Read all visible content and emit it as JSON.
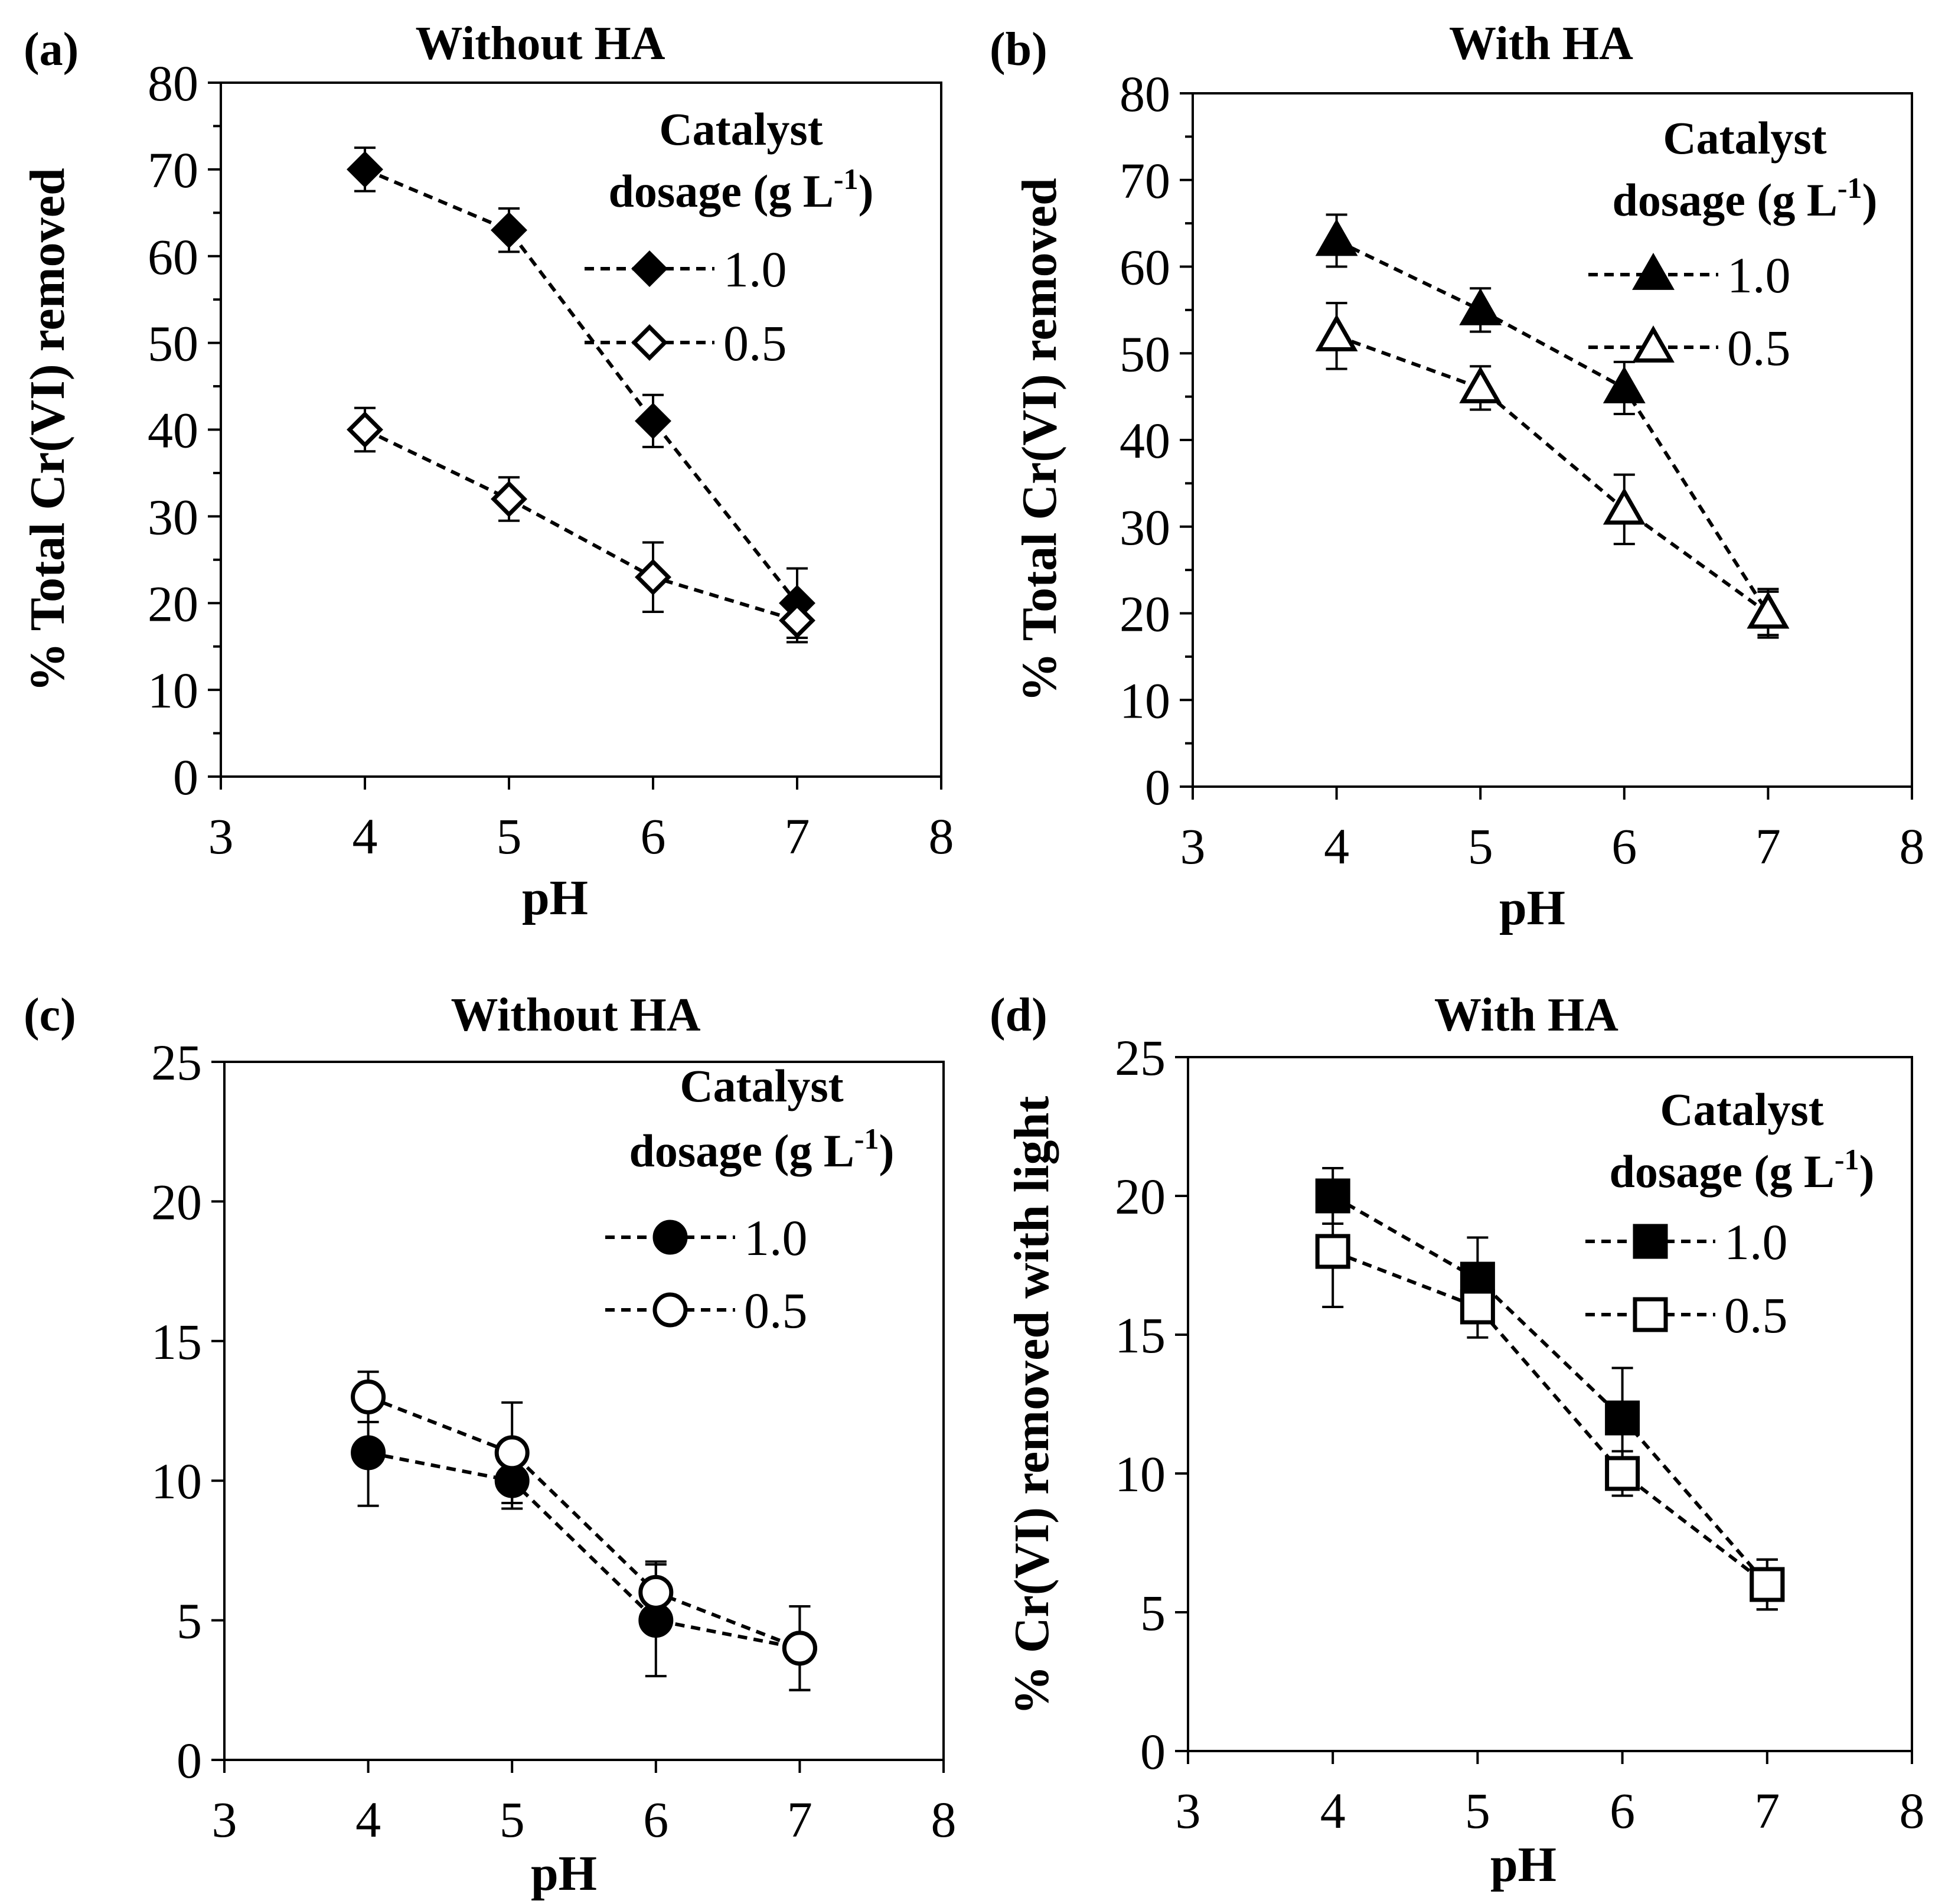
{
  "colors": {
    "ink": "#000000",
    "background": "#ffffff",
    "open_fill": "#ffffff"
  },
  "legend": {
    "title_line1": "Catalyst",
    "title_line2_prefix": "dosage (g L",
    "title_line2_sup": "-1",
    "title_line2_suffix": ")"
  },
  "chart_data": [
    {
      "id": "a",
      "type": "line",
      "panel_label": "(a)",
      "title": "Without HA",
      "xlabel": "pH",
      "ylabel": "% Total Cr(VI) removed",
      "xlim": [
        3,
        8
      ],
      "ylim": [
        0,
        80
      ],
      "xticks": [
        "3",
        "4",
        "5",
        "6",
        "7",
        "8"
      ],
      "yticks": [
        "0",
        "10",
        "20",
        "30",
        "40",
        "50",
        "60",
        "70",
        "80"
      ],
      "minor_y": [
        5,
        15,
        25,
        35,
        45,
        55,
        65,
        75
      ],
      "marker": "diamond",
      "x": [
        4,
        5,
        6,
        7
      ],
      "series": [
        {
          "name": "1.0",
          "filled": true,
          "values": [
            70,
            63,
            41,
            20
          ],
          "errors": [
            2.5,
            2.5,
            3,
            4
          ]
        },
        {
          "name": "0.5",
          "filled": false,
          "values": [
            40,
            32,
            23,
            18
          ],
          "errors": [
            2.5,
            2.5,
            4,
            2.5
          ]
        }
      ]
    },
    {
      "id": "b",
      "type": "line",
      "panel_label": "(b)",
      "title": "With HA",
      "xlabel": "pH",
      "ylabel": "% Total Cr(VI) removed",
      "xlim": [
        3,
        8
      ],
      "ylim": [
        0,
        80
      ],
      "xticks": [
        "3",
        "4",
        "5",
        "6",
        "7",
        "8"
      ],
      "yticks": [
        "0",
        "10",
        "20",
        "30",
        "40",
        "50",
        "60",
        "70",
        "80"
      ],
      "minor_y": [
        5,
        15,
        25,
        35,
        45,
        55,
        65,
        75
      ],
      "marker": "triangle",
      "x": [
        4,
        5,
        6,
        7
      ],
      "series": [
        {
          "name": "1.0",
          "filled": true,
          "values": [
            63,
            55,
            46,
            20
          ],
          "errors": [
            3,
            2.5,
            3,
            2.5
          ]
        },
        {
          "name": "0.5",
          "filled": false,
          "values": [
            52,
            46,
            32,
            20
          ],
          "errors": [
            3.8,
            2.5,
            4,
            2.8
          ]
        }
      ]
    },
    {
      "id": "c",
      "type": "line",
      "panel_label": "(c)",
      "title": "Without HA",
      "xlabel": "pH",
      "ylabel": "",
      "xlim": [
        3,
        8
      ],
      "ylim": [
        0,
        25
      ],
      "xticks": [
        "3",
        "4",
        "5",
        "6",
        "7",
        "8"
      ],
      "yticks": [
        "0",
        "5",
        "10",
        "15",
        "20",
        "25"
      ],
      "minor_y": [],
      "marker": "circle",
      "x": [
        4,
        5,
        6,
        7
      ],
      "series": [
        {
          "name": "1.0",
          "filled": true,
          "values": [
            11,
            10,
            5,
            4
          ],
          "errors": [
            1.9,
            1.0,
            2.0,
            1.5
          ]
        },
        {
          "name": "0.5",
          "filled": false,
          "values": [
            13,
            11,
            6,
            4
          ],
          "errors": [
            0.9,
            1.8,
            1.1,
            1.5
          ]
        }
      ]
    },
    {
      "id": "d",
      "type": "line",
      "panel_label": "(d)",
      "title": "With HA",
      "xlabel": "pH",
      "ylabel": "% Cr(VI) removed with light",
      "xlim": [
        3,
        8
      ],
      "ylim": [
        0,
        25
      ],
      "xticks": [
        "3",
        "4",
        "5",
        "6",
        "7",
        "8"
      ],
      "yticks": [
        "0",
        "5",
        "10",
        "15",
        "20",
        "25"
      ],
      "minor_y": [],
      "marker": "square",
      "x": [
        4,
        5,
        6,
        7
      ],
      "series": [
        {
          "name": "1.0",
          "filled": true,
          "values": [
            20,
            17,
            12,
            6
          ],
          "errors": [
            1.0,
            1.5,
            1.8,
            0.9
          ]
        },
        {
          "name": "0.5",
          "filled": false,
          "values": [
            18,
            16,
            10,
            6
          ],
          "errors": [
            2.0,
            1.1,
            0.8,
            0.9
          ]
        }
      ]
    }
  ]
}
